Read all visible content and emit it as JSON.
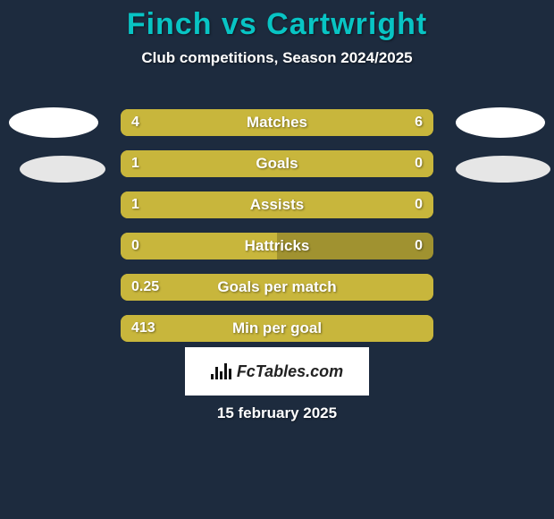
{
  "background_color": "#1d2b3e",
  "title": {
    "text": "Finch vs Cartwright",
    "color": "#08c4c4",
    "fontsize": 34
  },
  "subtitle": {
    "text": "Club competitions, Season 2024/2025",
    "color": "#ffffff",
    "fontsize": 17
  },
  "stats": {
    "bar_track_color": "#a09230",
    "bar_fill_color": "#c8b63c",
    "label_color": "#ffffff",
    "value_color": "#ffffff",
    "label_fontsize": 17,
    "value_fontsize": 16,
    "rows": [
      {
        "label": "Matches",
        "left": "4",
        "right": "6",
        "left_pct": 40,
        "right_pct": 60
      },
      {
        "label": "Goals",
        "left": "1",
        "right": "0",
        "left_pct": 75,
        "right_pct": 25
      },
      {
        "label": "Assists",
        "left": "1",
        "right": "0",
        "left_pct": 75,
        "right_pct": 25
      },
      {
        "label": "Hattricks",
        "left": "0",
        "right": "0",
        "left_pct": 50,
        "right_pct": 0
      },
      {
        "label": "Goals per match",
        "left": "0.25",
        "right": "",
        "left_pct": 100,
        "right_pct": 0
      },
      {
        "label": "Min per goal",
        "left": "413",
        "right": "",
        "left_pct": 100,
        "right_pct": 0
      }
    ]
  },
  "brand": {
    "text": "FcTables.com"
  },
  "date": {
    "text": "15 february 2025",
    "color": "#ffffff",
    "fontsize": 17
  }
}
